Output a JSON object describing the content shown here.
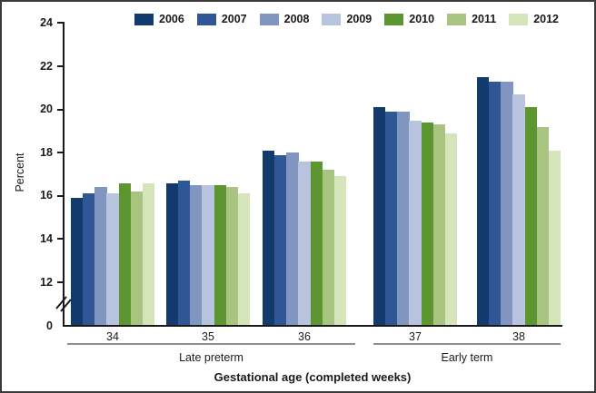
{
  "figure": {
    "y_axis_label": "Percent",
    "x_axis_title": "Gestational age (completed weeks)"
  },
  "chart_data": {
    "type": "bar",
    "title": "",
    "xlabel": "Gestational age (completed weeks)",
    "ylabel": "Percent",
    "categories": [
      "34",
      "35",
      "36",
      "37",
      "38"
    ],
    "category_groups": [
      {
        "label": "Late preterm",
        "from": "34",
        "to": "36"
      },
      {
        "label": "Early term",
        "from": "37",
        "to": "38"
      }
    ],
    "series": [
      {
        "name": "2006",
        "color": "#123a6d",
        "values": [
          15.9,
          16.6,
          18.1,
          20.1,
          21.5
        ]
      },
      {
        "name": "2007",
        "color": "#2f5795",
        "values": [
          16.1,
          16.7,
          17.9,
          19.9,
          21.3
        ]
      },
      {
        "name": "2008",
        "color": "#8195c1",
        "values": [
          16.4,
          16.5,
          18.0,
          19.9,
          21.3
        ]
      },
      {
        "name": "2009",
        "color": "#b8c3de",
        "values": [
          16.1,
          16.5,
          17.6,
          19.5,
          20.7
        ]
      },
      {
        "name": "2010",
        "color": "#5d9630",
        "values": [
          16.6,
          16.5,
          17.6,
          19.4,
          20.1
        ]
      },
      {
        "name": "2011",
        "color": "#a9c480",
        "values": [
          16.2,
          16.4,
          17.2,
          19.3,
          19.2
        ]
      },
      {
        "name": "2012",
        "color": "#d6e4bc",
        "values": [
          16.6,
          16.1,
          16.9,
          18.9,
          18.1
        ]
      }
    ],
    "y_ticks_labeled": [
      0,
      12,
      14,
      16,
      18,
      20,
      22,
      24
    ],
    "axis_break_between": [
      0,
      12
    ],
    "ylim": [
      0,
      24
    ],
    "grid": false,
    "legend_position": "top"
  }
}
